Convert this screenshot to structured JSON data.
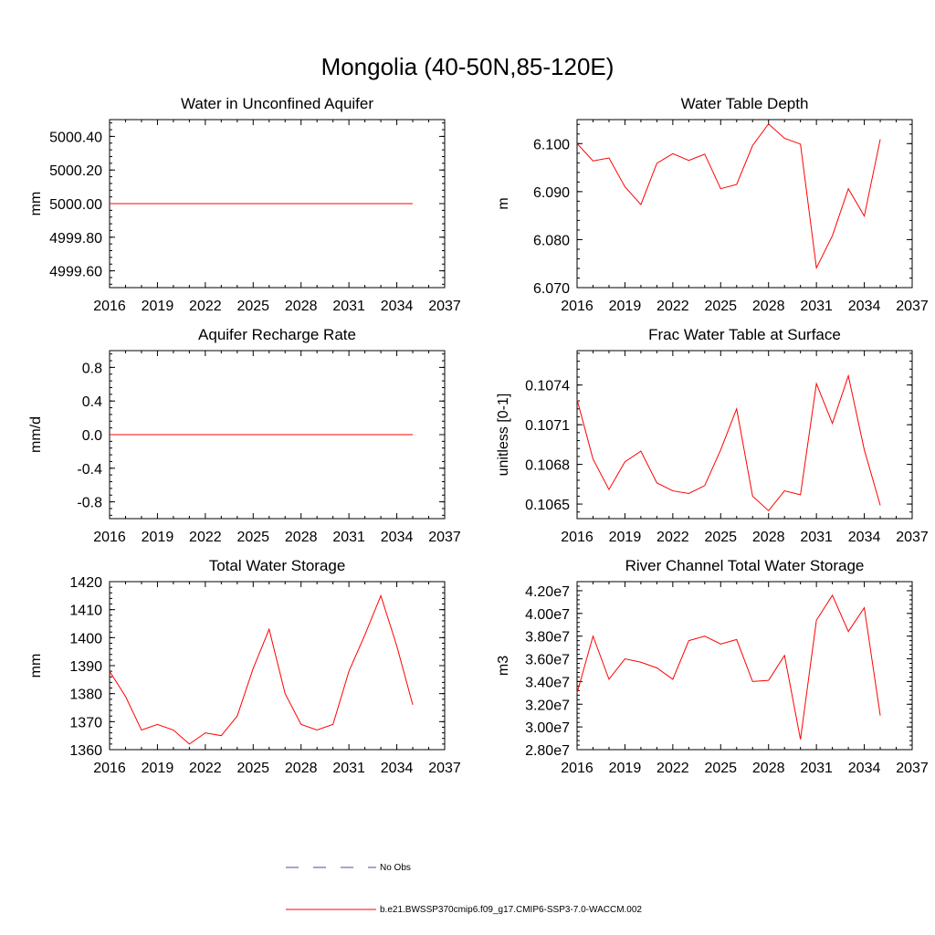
{
  "page_title": "Mongolia (40-50N,85-120E)",
  "colors": {
    "model_line": "#ff0000",
    "obs_line": "#4a4aa8",
    "axis": "#000000"
  },
  "legend": {
    "obs_label": "No Obs",
    "model_label": "b.e21.BWSSP370cmip6.f09_g17.CMIP6-SSP3-7.0-WACCM.002"
  },
  "chart_data": [
    {
      "id": "water-unconfined-aquifer",
      "type": "line",
      "title": "Water in Unconfined Aquifer",
      "ylabel": "mm",
      "xlim": [
        2016,
        2037
      ],
      "ylim": [
        4999.5,
        5000.5
      ],
      "xticks": [
        2016,
        2019,
        2022,
        2025,
        2028,
        2031,
        2034,
        2037
      ],
      "yticks": [
        4999.6,
        4999.8,
        5000.0,
        5000.2,
        5000.4
      ],
      "ytick_labels": [
        "4999.60",
        "4999.80",
        "5000.00",
        "5000.20",
        "5000.40"
      ],
      "x": [
        2016,
        2017,
        2018,
        2019,
        2020,
        2021,
        2022,
        2023,
        2024,
        2025,
        2026,
        2027,
        2028,
        2029,
        2030,
        2031,
        2032,
        2033,
        2034,
        2035
      ],
      "series": [
        {
          "name": "model",
          "values": [
            5000,
            5000,
            5000,
            5000,
            5000,
            5000,
            5000,
            5000,
            5000,
            5000,
            5000,
            5000,
            5000,
            5000,
            5000,
            5000,
            5000,
            5000,
            5000,
            5000
          ]
        }
      ]
    },
    {
      "id": "water-table-depth",
      "type": "line",
      "title": "Water Table Depth",
      "ylabel": "m",
      "xlim": [
        2016,
        2037
      ],
      "ylim": [
        6.07,
        6.105
      ],
      "xticks": [
        2016,
        2019,
        2022,
        2025,
        2028,
        2031,
        2034,
        2037
      ],
      "yticks": [
        6.07,
        6.08,
        6.09,
        6.1
      ],
      "ytick_labels": [
        "6.070",
        "6.080",
        "6.090",
        "6.100"
      ],
      "x": [
        2016,
        2017,
        2018,
        2019,
        2020,
        2021,
        2022,
        2023,
        2024,
        2025,
        2026,
        2027,
        2028,
        2029,
        2030,
        2031,
        2032,
        2033,
        2034,
        2035
      ],
      "series": [
        {
          "name": "model",
          "values": [
            6.1,
            6.0964,
            6.097,
            6.091,
            6.0873,
            6.0959,
            6.0979,
            6.0965,
            6.0978,
            6.0906,
            6.0915,
            6.0996,
            6.1041,
            6.1011,
            6.0999,
            6.0741,
            6.0808,
            6.0906,
            6.0849,
            6.1009
          ]
        }
      ]
    },
    {
      "id": "aquifer-recharge-rate",
      "type": "line",
      "title": "Aquifer Recharge Rate",
      "ylabel": "mm/d",
      "xlim": [
        2016,
        2037
      ],
      "ylim": [
        -1.0,
        1.0
      ],
      "xticks": [
        2016,
        2019,
        2022,
        2025,
        2028,
        2031,
        2034,
        2037
      ],
      "yticks": [
        -0.8,
        -0.4,
        0.0,
        0.4,
        0.8
      ],
      "ytick_labels": [
        "-0.8",
        "-0.4",
        "0.0",
        "0.4",
        "0.8"
      ],
      "x": [
        2016,
        2017,
        2018,
        2019,
        2020,
        2021,
        2022,
        2023,
        2024,
        2025,
        2026,
        2027,
        2028,
        2029,
        2030,
        2031,
        2032,
        2033,
        2034,
        2035
      ],
      "series": [
        {
          "name": "model",
          "values": [
            0,
            0,
            0,
            0,
            0,
            0,
            0,
            0,
            0,
            0,
            0,
            0,
            0,
            0,
            0,
            0,
            0,
            0,
            0,
            0
          ]
        }
      ]
    },
    {
      "id": "frac-water-table-surface",
      "type": "line",
      "title": "Frac Water Table at Surface",
      "ylabel": "unitless [0-1]",
      "xlim": [
        2016,
        2037
      ],
      "ylim": [
        0.10639,
        0.10766
      ],
      "xticks": [
        2016,
        2019,
        2022,
        2025,
        2028,
        2031,
        2034,
        2037
      ],
      "yticks": [
        0.1065,
        0.1068,
        0.1071,
        0.1074
      ],
      "ytick_labels": [
        "0.1065",
        "0.1068",
        "0.1071",
        "0.1074"
      ],
      "x": [
        2016,
        2017,
        2018,
        2019,
        2020,
        2021,
        2022,
        2023,
        2024,
        2025,
        2026,
        2027,
        2028,
        2029,
        2030,
        2031,
        2032,
        2033,
        2034,
        2035
      ],
      "series": [
        {
          "name": "model",
          "values": [
            0.10729,
            0.10684,
            0.10661,
            0.10682,
            0.1069,
            0.10666,
            0.1066,
            0.10658,
            0.10664,
            0.10691,
            0.10722,
            0.10656,
            0.10645,
            0.1066,
            0.10657,
            0.10741,
            0.10711,
            0.10747,
            0.10691,
            0.10649
          ]
        }
      ]
    },
    {
      "id": "total-water-storage",
      "type": "line",
      "title": "Total Water Storage",
      "ylabel": "mm",
      "xlim": [
        2016,
        2037
      ],
      "ylim": [
        1360,
        1420
      ],
      "xticks": [
        2016,
        2019,
        2022,
        2025,
        2028,
        2031,
        2034,
        2037
      ],
      "yticks": [
        1360,
        1370,
        1380,
        1390,
        1400,
        1410,
        1420
      ],
      "ytick_labels": [
        "1360",
        "1370",
        "1380",
        "1390",
        "1400",
        "1410",
        "1420"
      ],
      "x": [
        2016,
        2017,
        2018,
        2019,
        2020,
        2021,
        2022,
        2023,
        2024,
        2025,
        2026,
        2027,
        2028,
        2029,
        2030,
        2031,
        2032,
        2033,
        2034,
        2035
      ],
      "series": [
        {
          "name": "model",
          "values": [
            1388,
            1379,
            1367,
            1369,
            1367,
            1362,
            1366,
            1365,
            1372,
            1389,
            1403,
            1380,
            1369,
            1367,
            1369,
            1388,
            1401,
            1415,
            1397,
            1376
          ]
        }
      ]
    },
    {
      "id": "river-channel-storage",
      "type": "line",
      "title": "River Channel Total Water Storage",
      "ylabel": "m3",
      "xlim": [
        2016,
        2037
      ],
      "ylim": [
        28000000,
        42800000
      ],
      "xticks": [
        2016,
        2019,
        2022,
        2025,
        2028,
        2031,
        2034,
        2037
      ],
      "yticks": [
        28000000,
        30000000,
        32000000,
        34000000,
        36000000,
        38000000,
        40000000,
        42000000
      ],
      "ytick_labels": [
        "2.80e7",
        "3.00e7",
        "3.20e7",
        "3.40e7",
        "3.60e7",
        "3.80e7",
        "4.00e7",
        "4.20e7"
      ],
      "x": [
        2016,
        2017,
        2018,
        2019,
        2020,
        2021,
        2022,
        2023,
        2024,
        2025,
        2026,
        2027,
        2028,
        2029,
        2030,
        2031,
        2032,
        2033,
        2034,
        2035
      ],
      "series": [
        {
          "name": "model",
          "values": [
            33000000,
            38000000,
            34200000,
            36000000,
            35700000,
            35200000,
            34200000,
            37600000,
            38000000,
            37300000,
            37700000,
            34000000,
            34100000,
            36300000,
            28900000,
            39400000,
            41600000,
            38400000,
            40500000,
            31000000
          ]
        }
      ]
    }
  ]
}
